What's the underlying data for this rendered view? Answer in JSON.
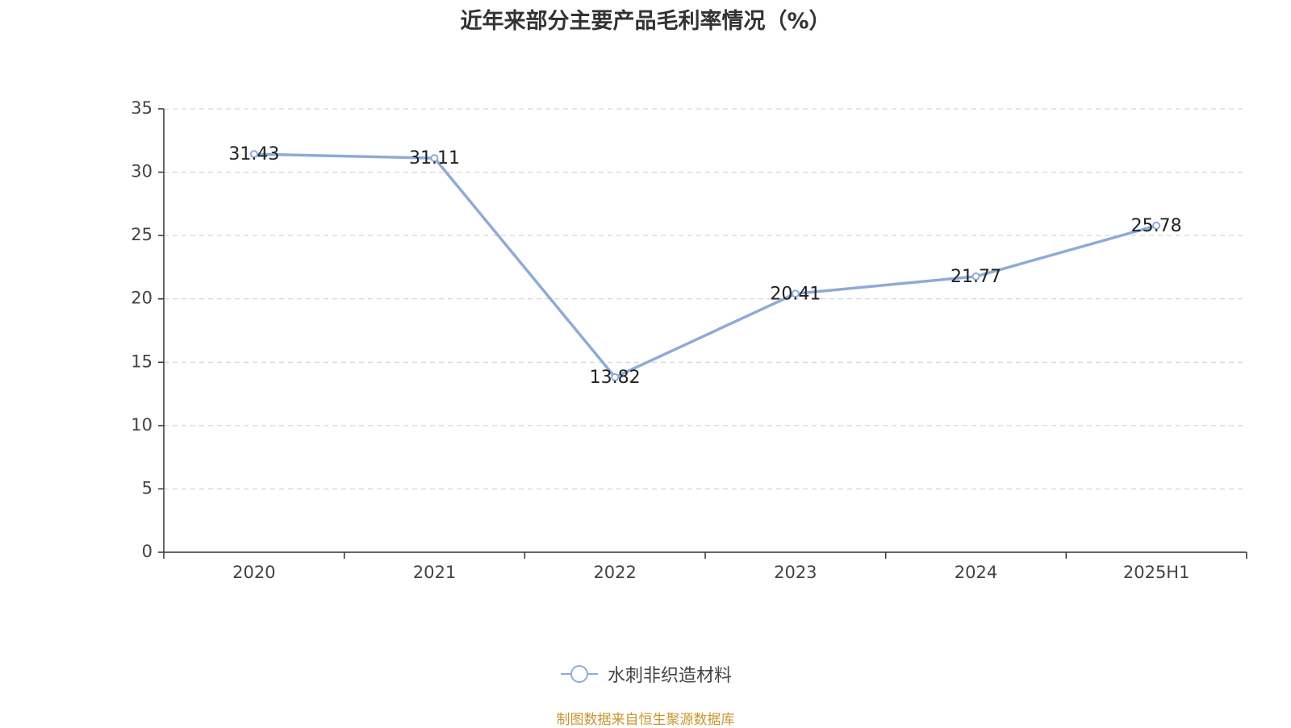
{
  "chart_data": {
    "type": "line",
    "title": "近年来部分主要产品毛利率情况（%）",
    "categories": [
      "2020",
      "2021",
      "2022",
      "2023",
      "2024",
      "2025H1"
    ],
    "series": [
      {
        "name": "水刺非织造材料",
        "values": [
          31.43,
          31.11,
          13.82,
          20.41,
          21.77,
          25.78
        ]
      }
    ],
    "data_labels": [
      "31.43",
      "31.11",
      "13.82",
      "20.41",
      "21.77",
      "25.78"
    ],
    "ylim": [
      0,
      35
    ],
    "yticks": [
      0,
      5,
      10,
      15,
      20,
      25,
      30,
      35
    ],
    "grid": true,
    "legend_position": "bottom-center",
    "line_color": "#8eabd8",
    "source_note": "制图数据来自恒生聚源数据库"
  }
}
